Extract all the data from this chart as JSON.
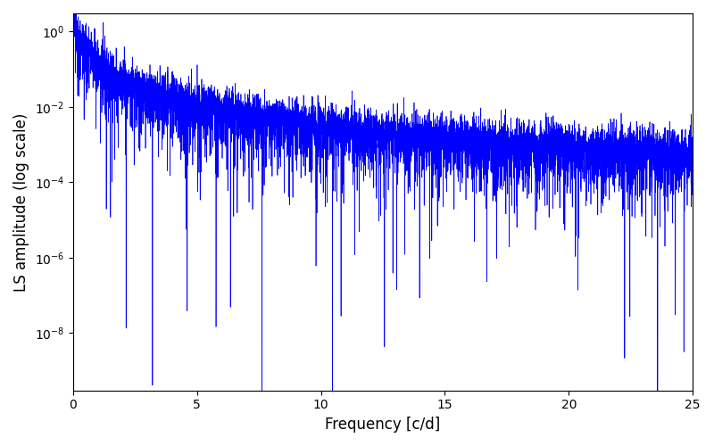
{
  "line_color": "#0000ff",
  "xlabel": "Frequency [c/d]",
  "ylabel": "LS amplitude (log scale)",
  "xlim": [
    0,
    25
  ],
  "ylim_bottom": 3e-10,
  "ylim_top": 3.0,
  "figsize": [
    8.0,
    5.0
  ],
  "dpi": 100,
  "freq_max": 25.0,
  "n_points": 8000,
  "seed": 12345
}
